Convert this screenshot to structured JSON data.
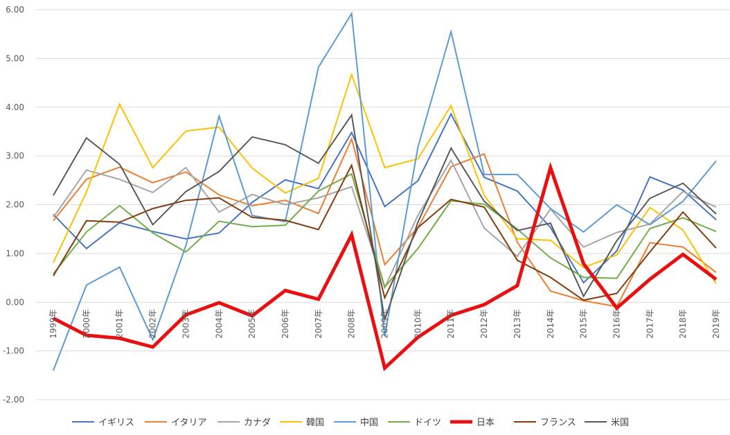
{
  "chart_data": {
    "type": "line",
    "title": "",
    "xlabel": "",
    "ylabel": "",
    "ylim": [
      -2.0,
      6.0
    ],
    "yticks": [
      "-2.00",
      "-1.00",
      "0.00",
      "1.00",
      "2.00",
      "3.00",
      "4.00",
      "5.00",
      "6.00"
    ],
    "gridlines": true,
    "legend_position": "bottom",
    "categories": [
      "1999年",
      "2000年",
      "2001年",
      "2002年",
      "2003年",
      "2004年",
      "2005年",
      "2006年",
      "2007年",
      "2008年",
      "2009年",
      "2010年",
      "2011年",
      "2012年",
      "2013年",
      "2014年",
      "2015年",
      "2016年",
      "2017年",
      "2018年",
      "2019年"
    ],
    "series": [
      {
        "name": "イギリス",
        "color": "#4472C4",
        "width": 2,
        "values": [
          1.8,
          1.1,
          1.63,
          1.45,
          1.3,
          1.42,
          2.05,
          2.51,
          2.33,
          3.48,
          1.96,
          2.49,
          3.86,
          2.56,
          2.28,
          1.53,
          0.4,
          1.05,
          2.57,
          2.3,
          1.69
        ]
      },
      {
        "name": "イタリア",
        "color": "#ED7D31",
        "width": 2,
        "values": [
          1.67,
          2.52,
          2.77,
          2.45,
          2.67,
          2.2,
          1.98,
          2.09,
          1.82,
          3.35,
          0.77,
          1.53,
          2.78,
          3.04,
          1.23,
          0.23,
          0.03,
          -0.09,
          1.22,
          1.13,
          0.61
        ]
      },
      {
        "name": "カナダ",
        "color": "#A5A5A5",
        "width": 2,
        "values": [
          1.74,
          2.71,
          2.52,
          2.25,
          2.76,
          1.85,
          2.21,
          2.0,
          2.14,
          2.37,
          0.3,
          1.78,
          2.91,
          1.52,
          0.94,
          1.91,
          1.13,
          1.43,
          1.6,
          2.27,
          1.95
        ]
      },
      {
        "name": "韓国",
        "color": "#FFC000",
        "width": 2,
        "values": [
          0.81,
          2.26,
          4.06,
          2.76,
          3.51,
          3.59,
          2.75,
          2.24,
          2.54,
          4.67,
          2.76,
          2.94,
          4.03,
          2.19,
          1.3,
          1.27,
          0.71,
          0.97,
          1.94,
          1.48,
          0.38
        ]
      },
      {
        "name": "中国",
        "color": "#5B9BD5",
        "width": 2,
        "values": [
          -1.4,
          0.35,
          0.72,
          -0.77,
          1.16,
          3.82,
          1.78,
          1.65,
          4.82,
          5.92,
          -0.7,
          3.18,
          5.55,
          2.62,
          2.62,
          1.92,
          1.44,
          2.0,
          1.59,
          2.07,
          2.9
        ]
      },
      {
        "name": "ドイツ",
        "color": "#70AD47",
        "width": 2,
        "values": [
          0.58,
          1.44,
          1.98,
          1.42,
          1.03,
          1.66,
          1.55,
          1.58,
          2.28,
          2.63,
          0.31,
          1.1,
          2.08,
          2.01,
          1.5,
          0.91,
          0.51,
          0.49,
          1.51,
          1.73,
          1.45
        ]
      },
      {
        "name": "日本",
        "color": "#E81010",
        "width": 5,
        "values": [
          -0.33,
          -0.68,
          -0.74,
          -0.92,
          -0.26,
          -0.01,
          -0.28,
          0.24,
          0.06,
          1.38,
          -1.35,
          -0.72,
          -0.27,
          -0.05,
          0.34,
          2.76,
          0.79,
          -0.12,
          0.47,
          0.98,
          0.47
        ]
      },
      {
        "name": "フランス",
        "color": "#843C0C",
        "width": 2,
        "values": [
          0.54,
          1.67,
          1.64,
          1.92,
          2.09,
          2.14,
          1.74,
          1.68,
          1.49,
          2.81,
          0.09,
          1.53,
          2.11,
          1.95,
          0.86,
          0.51,
          0.04,
          0.18,
          1.03,
          1.85,
          1.11
        ]
      },
      {
        "name": "米国",
        "color": "#595959",
        "width": 2,
        "values": [
          2.19,
          3.37,
          2.83,
          1.59,
          2.27,
          2.68,
          3.39,
          3.23,
          2.85,
          3.84,
          -0.36,
          1.64,
          3.16,
          2.07,
          1.47,
          1.62,
          0.12,
          1.26,
          2.13,
          2.44,
          1.81
        ]
      }
    ]
  }
}
